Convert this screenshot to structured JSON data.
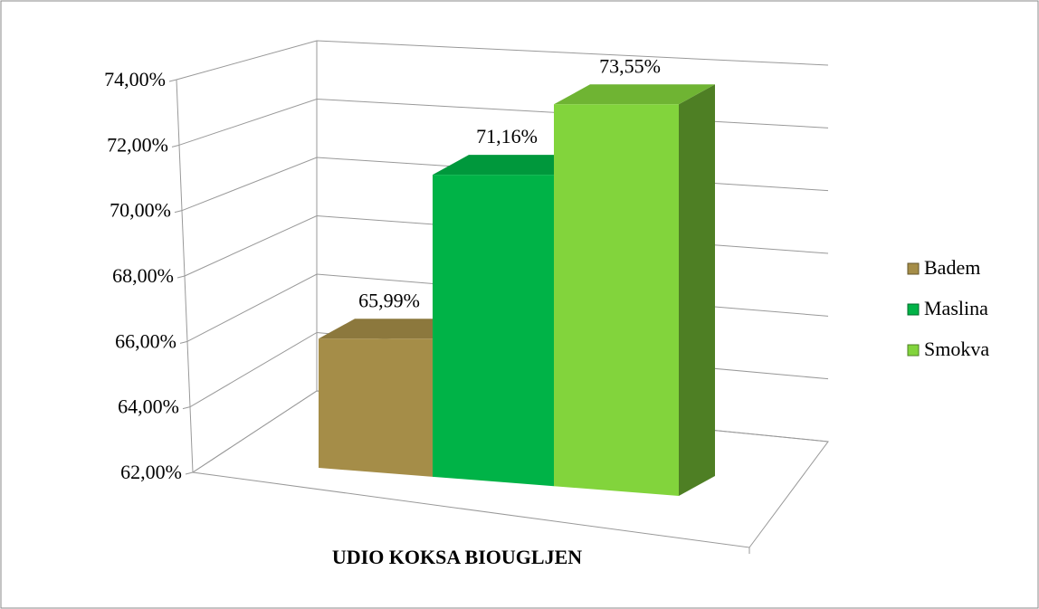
{
  "chart_data": {
    "type": "bar",
    "x_label": "UDIO KOKSA BIOUGLJEN",
    "series": [
      {
        "name": "Badem",
        "color": "#a58d48",
        "values": [
          65.99
        ],
        "value_labels": [
          "65,99%"
        ]
      },
      {
        "name": "Maslina",
        "color": "#00b347",
        "values": [
          71.16
        ],
        "value_labels": [
          "71,16%"
        ]
      },
      {
        "name": "Smokva",
        "color": "#82d43c",
        "values": [
          73.55
        ],
        "value_labels": [
          "73,55%"
        ]
      }
    ],
    "ylim": [
      62,
      74
    ],
    "yticks": [
      {
        "value": 62,
        "label": "62,00%"
      },
      {
        "value": 64,
        "label": "64,00%"
      },
      {
        "value": 66,
        "label": "66,00%"
      },
      {
        "value": 68,
        "label": "68,00%"
      },
      {
        "value": 70,
        "label": "70,00%"
      },
      {
        "value": 72,
        "label": "72,00%"
      },
      {
        "value": 74,
        "label": "74,00%"
      }
    ],
    "grid": true,
    "legend": "right"
  }
}
